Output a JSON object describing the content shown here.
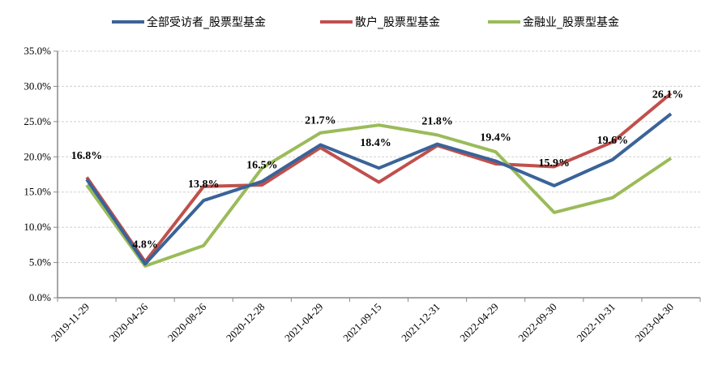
{
  "chart_data": {
    "type": "line",
    "title": "",
    "xlabel": "",
    "ylabel": "",
    "ylim": [
      0,
      35
    ],
    "yticks": [
      "0.0%",
      "5.0%",
      "10.0%",
      "15.0%",
      "20.0%",
      "25.0%",
      "30.0%",
      "35.0%"
    ],
    "grid": true,
    "legend_position": "top",
    "categories": [
      "2019-11-29",
      "2020-04-26",
      "2020-08-26",
      "2020-12-28",
      "2021-04-29",
      "2021-09-15",
      "2021-12-31",
      "2022-04-29",
      "2022-09-30",
      "2022-10-31",
      "2023-04-30"
    ],
    "series": [
      {
        "name": "全部受访者_股票型基金",
        "color": "#3a6398",
        "values": [
          16.8,
          4.8,
          13.8,
          16.5,
          21.7,
          18.4,
          21.8,
          19.4,
          15.9,
          19.6,
          26.1
        ],
        "data_labels": [
          "16.8%",
          "4.8%",
          "13.8%",
          "16.5%",
          "21.7%",
          "18.4%",
          "21.8%",
          "19.4%",
          "15.9%",
          "19.6%",
          "26.1%"
        ]
      },
      {
        "name": "散户_股票型基金",
        "color": "#c0504d",
        "values": [
          17.1,
          5.1,
          15.8,
          16.0,
          21.3,
          16.4,
          21.6,
          19.0,
          18.6,
          22.1,
          29.0
        ]
      },
      {
        "name": "金融业_股票型基金",
        "color": "#9bbb59",
        "values": [
          16.0,
          4.5,
          7.4,
          18.4,
          23.4,
          24.5,
          23.1,
          20.7,
          12.1,
          14.2,
          19.8
        ]
      }
    ]
  }
}
